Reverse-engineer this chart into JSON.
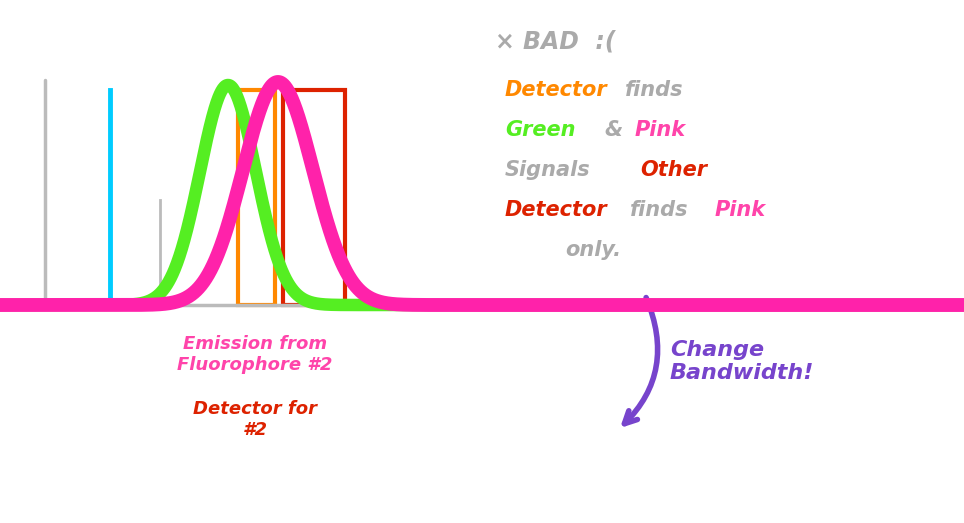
{
  "bg_color": "#ffffff",
  "text_emission": "Emission from\nFluorophore #2",
  "text_detector": "Detector for\n#2",
  "text_bad": "× BAD  :(",
  "arrow_text": "Change\nBandwidth!"
}
